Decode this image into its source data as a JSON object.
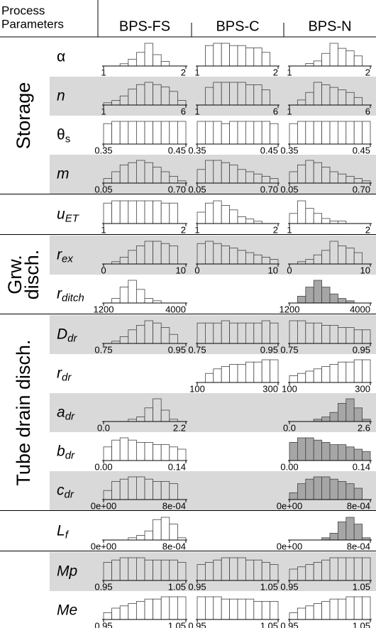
{
  "header": {
    "corner": [
      "Process",
      "Parameters"
    ],
    "columns": [
      "BPS-FS",
      "BPS-C",
      "BPS-N"
    ]
  },
  "groups": [
    {
      "label": [
        "Storage"
      ],
      "rows": [
        {
          "symbol": "α",
          "italic": false,
          "cells": [
            {
              "color": "#ffffff",
              "counts": [
                0,
                0,
                1,
                3,
                6,
                10,
                5,
                2,
                0,
                0
              ],
              "ticks": [
                "1",
                "2"
              ]
            },
            {
              "color": "#ffffff",
              "counts": [
                0,
                9,
                10,
                10,
                9,
                9,
                8,
                8,
                6,
                0
              ],
              "ticks": [
                "1",
                "2"
              ]
            },
            {
              "color": "#ffffff",
              "counts": [
                0,
                0,
                1,
                2,
                5,
                9,
                7,
                6,
                4,
                0
              ],
              "ticks": [
                "1",
                "2"
              ]
            }
          ]
        },
        {
          "symbol": "n",
          "italic": true,
          "background": "#d9d9d9",
          "cells": [
            {
              "color": "#d9d9d9",
              "counts": [
                1,
                2,
                4,
                7,
                9,
                10,
                9,
                8,
                6,
                2
              ],
              "ticks": [
                "1",
                "6"
              ]
            },
            {
              "color": "#d9d9d9",
              "counts": [
                0,
                7,
                9,
                9,
                9,
                9,
                8,
                8,
                6,
                0
              ],
              "ticks": [
                "1",
                "6"
              ]
            },
            {
              "color": "#d9d9d9",
              "counts": [
                0,
                2,
                5,
                9,
                8,
                7,
                6,
                5,
                3,
                0
              ],
              "ticks": [
                "1",
                "6"
              ]
            }
          ]
        },
        {
          "symbol": "θ",
          "subscript": "s",
          "italic": false,
          "cells": [
            {
              "color": "#ffffff",
              "counts": [
                9,
                10,
                10,
                10,
                10,
                10,
                10,
                10,
                10,
                10
              ],
              "ticks": [
                "0.35",
                "0.45"
              ]
            },
            {
              "color": "#ffffff",
              "counts": [
                10,
                10,
                10,
                9,
                10,
                10,
                10,
                10,
                10,
                9
              ],
              "ticks": [
                "0.35",
                "0.45"
              ]
            },
            {
              "color": "#ffffff",
              "counts": [
                9,
                10,
                10,
                10,
                10,
                10,
                10,
                10,
                10,
                10
              ],
              "ticks": [
                "0.35",
                "0.45"
              ]
            }
          ]
        },
        {
          "symbol": "m",
          "italic": true,
          "background": "#d9d9d9",
          "cells": [
            {
              "color": "#d9d9d9",
              "counts": [
                2,
                5,
                8,
                9,
                10,
                9,
                7,
                5,
                3,
                1
              ],
              "ticks": [
                "0.05",
                "0.70"
              ]
            },
            {
              "color": "#d9d9d9",
              "counts": [
                6,
                10,
                10,
                9,
                8,
                6,
                5,
                4,
                3,
                2
              ],
              "ticks": [
                "0.05",
                "0.70"
              ]
            },
            {
              "color": "#d9d9d9",
              "counts": [
                5,
                8,
                10,
                9,
                7,
                5,
                4,
                3,
                2,
                1
              ],
              "ticks": [
                "0.05",
                "0.70"
              ]
            }
          ]
        }
      ]
    },
    {
      "rows": [
        {
          "symbol": "u",
          "subscript": "ET",
          "italic": true,
          "cells": [
            {
              "color": "#ffffff",
              "counts": [
                9,
                10,
                10,
                10,
                10,
                10,
                10,
                9,
                9,
                0
              ],
              "ticks": [
                "1",
                "2"
              ]
            },
            {
              "color": "#ffffff",
              "counts": [
                5,
                9,
                10,
                8,
                6,
                3,
                2,
                1,
                0,
                0
              ],
              "ticks": [
                "1",
                "2"
              ]
            },
            {
              "color": "#ffffff",
              "counts": [
                4,
                9,
                6,
                4,
                2,
                1,
                1,
                0,
                0,
                0
              ],
              "ticks": [
                "1",
                "2"
              ]
            }
          ]
        }
      ]
    },
    {
      "label": [
        "Grw.",
        "disch."
      ],
      "rows": [
        {
          "symbol": "r",
          "subscript": "ex",
          "italic": true,
          "background": "#d9d9d9",
          "cells": [
            {
              "color": "#d9d9d9",
              "counts": [
                0,
                1,
                3,
                6,
                8,
                10,
                10,
                9,
                8,
                0
              ],
              "ticks": [
                "0",
                "10"
              ]
            },
            {
              "color": "#d9d9d9",
              "counts": [
                9,
                10,
                9,
                8,
                7,
                6,
                5,
                4,
                3,
                2
              ],
              "ticks": [
                "0",
                "10"
              ]
            },
            {
              "color": "#d9d9d9",
              "counts": [
                0,
                1,
                2,
                4,
                6,
                10,
                8,
                7,
                5,
                0
              ],
              "ticks": [
                "0",
                "10"
              ]
            }
          ]
        },
        {
          "symbol": "r",
          "subscript": "ditch",
          "italic": true,
          "cells": [
            {
              "color": "#ffffff",
              "counts": [
                0,
                2,
                7,
                10,
                6,
                2,
                1,
                0,
                0,
                0
              ],
              "ticks": [
                "1200",
                "4000"
              ]
            },
            null,
            {
              "color": "#a6a6a6",
              "counts": [
                0,
                3,
                7,
                10,
                7,
                4,
                2,
                1,
                0,
                0
              ],
              "ticks": [
                "1200",
                "4000"
              ]
            }
          ]
        }
      ]
    },
    {
      "label": [
        "Tube drain disch."
      ],
      "rows": [
        {
          "symbol": "D",
          "subscript": "dr",
          "italic": true,
          "background": "#d9d9d9",
          "cells": [
            {
              "color": "#d9d9d9",
              "counts": [
                0,
                1,
                3,
                6,
                8,
                10,
                9,
                7,
                4,
                0
              ],
              "ticks": [
                "0.75",
                "0.95"
              ]
            },
            {
              "color": "#d9d9d9",
              "counts": [
                9,
                9,
                9,
                10,
                9,
                9,
                9,
                9,
                10,
                9
              ],
              "ticks": [
                "0.75",
                "0.95"
              ]
            },
            {
              "color": "#d9d9d9",
              "counts": [
                10,
                10,
                9,
                9,
                8,
                8,
                7,
                7,
                6,
                6
              ],
              "ticks": [
                "0.75",
                "0.95"
              ]
            }
          ]
        },
        {
          "symbol": "r",
          "subscript": "dr",
          "italic": true,
          "cells": [
            null,
            {
              "color": "#ffffff",
              "counts": [
                0,
                4,
                6,
                7,
                8,
                8,
                9,
                9,
                10,
                10
              ],
              "ticks": [
                "100",
                "300"
              ]
            },
            {
              "color": "#ffffff",
              "counts": [
                3,
                4,
                5,
                6,
                7,
                8,
                9,
                9,
                10,
                10
              ],
              "ticks": [
                "100",
                "300"
              ]
            }
          ]
        },
        {
          "symbol": "a",
          "subscript": "dr",
          "italic": true,
          "background": "#d9d9d9",
          "cells": [
            {
              "color": "#d9d9d9",
              "counts": [
                0,
                0,
                0,
                1,
                2,
                6,
                10,
                5,
                1,
                0
              ],
              "ticks": [
                "0.0",
                "2.2"
              ]
            },
            null,
            {
              "color": "#a6a6a6",
              "counts": [
                0,
                0,
                0,
                1,
                2,
                4,
                8,
                10,
                6,
                1
              ],
              "ticks": [
                "0.0",
                "2.6"
              ]
            }
          ]
        },
        {
          "symbol": "b",
          "subscript": "dr",
          "italic": true,
          "cells": [
            {
              "color": "#ffffff",
              "counts": [
                6,
                9,
                10,
                9,
                8,
                8,
                7,
                7,
                6,
                5
              ],
              "ticks": [
                "0.00",
                "0.14"
              ]
            },
            null,
            {
              "color": "#a6a6a6",
              "counts": [
                8,
                10,
                10,
                9,
                8,
                7,
                7,
                6,
                5,
                4
              ],
              "ticks": [
                "0.00",
                "0.14"
              ]
            }
          ]
        },
        {
          "symbol": "c",
          "subscript": "dr",
          "italic": true,
          "background": "#d9d9d9",
          "cells": [
            {
              "color": "#d9d9d9",
              "counts": [
                4,
                8,
                9,
                10,
                10,
                9,
                8,
                8,
                7,
                0
              ],
              "ticks": [
                "0e+00",
                "8e-04"
              ]
            },
            null,
            {
              "color": "#a6a6a6",
              "counts": [
                3,
                7,
                9,
                10,
                10,
                9,
                8,
                7,
                5,
                0
              ],
              "ticks": [
                "0e+00",
                "8e-04"
              ]
            }
          ]
        }
      ]
    },
    {
      "rows": [
        {
          "symbol": "L",
          "subscript": "f",
          "italic": true,
          "cells": [
            {
              "color": "#ffffff",
              "counts": [
                0,
                0,
                0,
                1,
                2,
                4,
                9,
                10,
                7,
                1
              ],
              "ticks": [
                "0e+00",
                "8e-04"
              ]
            },
            null,
            {
              "color": "#a6a6a6",
              "counts": [
                0,
                0,
                0,
                0,
                1,
                3,
                8,
                10,
                7,
                1
              ],
              "ticks": [
                "0e+00",
                "8e-04"
              ]
            }
          ]
        }
      ]
    },
    {
      "rows": [
        {
          "symbol": "Mp",
          "italic": true,
          "background": "#d9d9d9",
          "cells": [
            {
              "color": "#d9d9d9",
              "counts": [
                8,
                9,
                10,
                10,
                10,
                9,
                9,
                9,
                9,
                8
              ],
              "ticks": [
                "0.95",
                "1.05"
              ]
            },
            {
              "color": "#d9d9d9",
              "counts": [
                7,
                8,
                9,
                10,
                10,
                10,
                9,
                9,
                8,
                7
              ],
              "ticks": [
                "0.95",
                "1.05"
              ]
            },
            {
              "color": "#d9d9d9",
              "counts": [
                5,
                6,
                7,
                8,
                9,
                10,
                10,
                10,
                10,
                10
              ],
              "ticks": [
                "0.95",
                "1.05"
              ]
            }
          ]
        },
        {
          "symbol": "Me",
          "italic": true,
          "cells": [
            {
              "color": "#ffffff",
              "counts": [
                3,
                5,
                6,
                7,
                8,
                9,
                9,
                10,
                10,
                10
              ],
              "ticks": [
                "0.95",
                "1.05"
              ]
            },
            {
              "color": "#ffffff",
              "counts": [
                10,
                10,
                10,
                9,
                9,
                9,
                9,
                8,
                8,
                8
              ],
              "ticks": [
                "0.95",
                "1.05"
              ]
            },
            {
              "color": "#ffffff",
              "counts": [
                3,
                5,
                6,
                7,
                8,
                9,
                9,
                10,
                10,
                10
              ],
              "ticks": [
                "0.95",
                "1.05"
              ]
            }
          ]
        }
      ]
    }
  ]
}
